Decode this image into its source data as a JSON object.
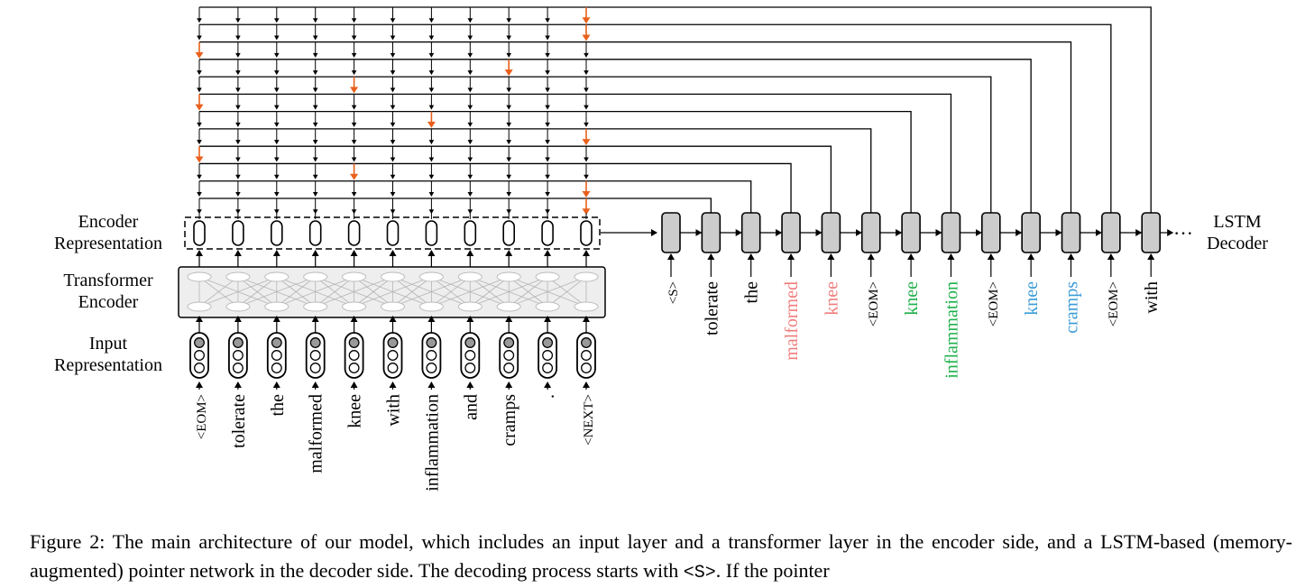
{
  "labels": {
    "encoder_rep": [
      "Encoder",
      "Representation"
    ],
    "transformer": [
      "Transformer",
      "Encoder"
    ],
    "input_rep": [
      "Input",
      "Representation"
    ],
    "decoder": [
      "LSTM",
      "Decoder"
    ],
    "ellipsis": "···"
  },
  "input_tokens": [
    "<EOM>",
    "tolerate",
    "the",
    "malformed",
    "knee",
    "with",
    "inflammation",
    "and",
    "cramps",
    ".",
    "<NEXT>"
  ],
  "decoder_tokens": [
    {
      "text": "<S>",
      "color": "#000000"
    },
    {
      "text": "tolerate",
      "color": "#000000"
    },
    {
      "text": "the",
      "color": "#000000"
    },
    {
      "text": "malformed",
      "color": "#F07C7C"
    },
    {
      "text": "knee",
      "color": "#F07C7C"
    },
    {
      "text": "<EOM>",
      "color": "#000000"
    },
    {
      "text": "knee",
      "color": "#1FB04A"
    },
    {
      "text": "inflammation",
      "color": "#1FB04A"
    },
    {
      "text": "<EOM>",
      "color": "#000000"
    },
    {
      "text": "knee",
      "color": "#3A9BD8"
    },
    {
      "text": "cramps",
      "color": "#3A9BD8"
    },
    {
      "text": "<EOM>",
      "color": "#000000"
    },
    {
      "text": "with",
      "color": "#000000"
    }
  ],
  "pointer_targets": [
    10,
    10,
    0,
    8,
    4,
    0,
    6,
    10,
    0,
    4,
    10,
    10
  ],
  "colors": {
    "pointer_arrow": "#E8601C",
    "decoder_cell": "#CCCCCC",
    "transformer_box": "#EEEEEE",
    "input_dot_filled": "#999999"
  },
  "caption": {
    "prefix": "Figure 2: The main architecture of our model, which includes an input layer and a transformer layer in the encoder side, and a LSTM-based (memory-augmented) pointer network in the decoder side. The decoding process starts with ",
    "start_token": "<S>",
    "suffix": ". If the pointer"
  }
}
